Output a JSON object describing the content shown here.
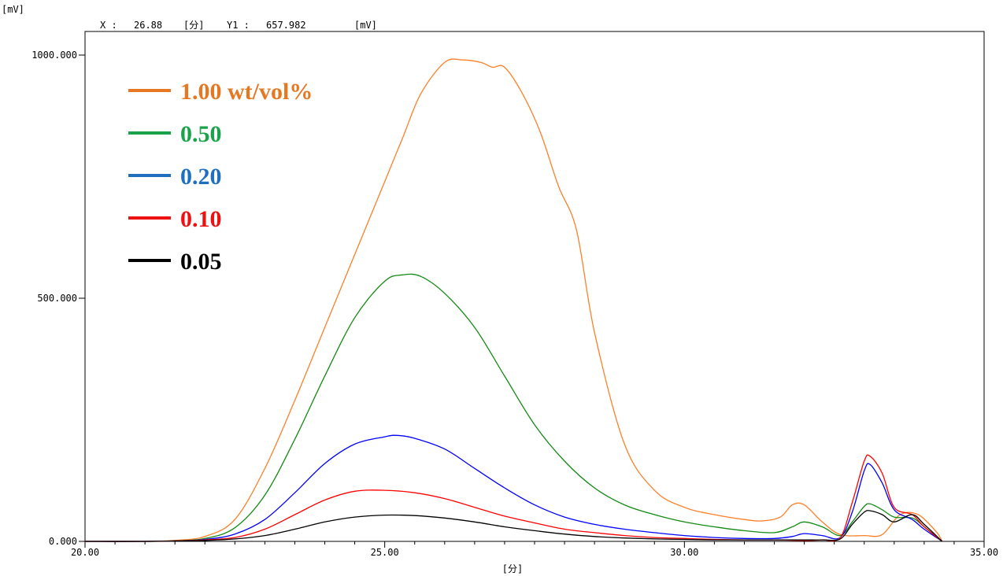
{
  "header": {
    "y_unit": "[mV]",
    "x_readout_label": "X :",
    "x_readout_value": "26.88",
    "x_readout_unit": "[分]",
    "y1_readout_label": "Y1 :",
    "y1_readout_value": "657.982",
    "y1_readout_unit": "[mV]"
  },
  "chart_data": {
    "type": "line",
    "title": "",
    "xlabel": "[分]",
    "ylabel": "[mV]",
    "xlim": [
      20,
      35
    ],
    "ylim": [
      0,
      1000
    ],
    "x_ticks": [
      {
        "value": 20,
        "label": "20.00"
      },
      {
        "value": 25,
        "label": "25.00"
      },
      {
        "value": 30,
        "label": "30.00"
      },
      {
        "value": 35,
        "label": "35.00"
      }
    ],
    "y_ticks": [
      {
        "value": 0,
        "label": "0.000"
      },
      {
        "value": 500,
        "label": "500.000"
      },
      {
        "value": 1000,
        "label": "1000.000"
      }
    ],
    "grid": false,
    "legend_position": "top-left",
    "series": [
      {
        "name": "1.00 wt/vol%",
        "color": "#ff7f27",
        "legend_color": "#e87722",
        "x": [
          20,
          21,
          21.5,
          22,
          22.5,
          23,
          23.5,
          24,
          24.5,
          25,
          25.3,
          25.6,
          26,
          26.3,
          26.6,
          26.8,
          27,
          27.3,
          27.6,
          27.9,
          28.2,
          28.5,
          29,
          29.5,
          30,
          30.5,
          31,
          31.3,
          31.6,
          31.8,
          32,
          32.3,
          32.6,
          33,
          33.3,
          33.6,
          33.9,
          34.2,
          34.3
        ],
        "values": [
          0,
          0,
          2,
          10,
          45,
          150,
          290,
          440,
          590,
          740,
          830,
          920,
          985,
          990,
          985,
          975,
          975,
          920,
          840,
          730,
          640,
          430,
          200,
          105,
          70,
          55,
          45,
          42,
          50,
          75,
          75,
          40,
          14,
          12,
          14,
          55,
          55,
          20,
          0
        ]
      },
      {
        "name": "0.50",
        "color": "#138a13",
        "legend_color": "#1aa34a",
        "x": [
          20,
          21,
          21.5,
          22,
          22.5,
          23,
          23.5,
          24,
          24.5,
          25,
          25.3,
          25.6,
          26,
          26.5,
          27,
          27.5,
          28,
          28.5,
          29,
          29.5,
          30,
          30.5,
          31,
          31.5,
          31.8,
          32,
          32.3,
          32.6,
          32.8,
          33,
          33.1,
          33.3,
          33.5,
          33.8,
          34,
          34.3
        ],
        "values": [
          0,
          0,
          1,
          6,
          28,
          95,
          210,
          340,
          460,
          535,
          548,
          545,
          510,
          440,
          340,
          240,
          165,
          110,
          75,
          55,
          40,
          30,
          22,
          18,
          30,
          40,
          30,
          12,
          40,
          72,
          77,
          65,
          50,
          48,
          30,
          0
        ]
      },
      {
        "name": "0.20",
        "color": "#0000ff",
        "legend_color": "#1f6fc0",
        "x": [
          20,
          21,
          21.5,
          22,
          22.5,
          23,
          23.5,
          24,
          24.5,
          25,
          25.2,
          25.5,
          26,
          26.5,
          27,
          27.5,
          28,
          28.5,
          29,
          29.5,
          30,
          30.5,
          31,
          31.5,
          31.8,
          32,
          32.3,
          32.6,
          32.8,
          33,
          33.1,
          33.3,
          33.5,
          33.8,
          34,
          34.3
        ],
        "values": [
          0,
          0,
          1,
          4,
          15,
          45,
          100,
          160,
          200,
          215,
          218,
          212,
          190,
          150,
          110,
          75,
          50,
          35,
          25,
          18,
          12,
          8,
          6,
          6,
          10,
          16,
          12,
          8,
          60,
          145,
          158,
          120,
          65,
          45,
          25,
          0
        ]
      },
      {
        "name": "0.10",
        "color": "#ff0000",
        "legend_color": "#ee1111",
        "x": [
          20,
          21,
          21.5,
          22,
          22.5,
          23,
          23.5,
          24,
          24.5,
          25,
          25.5,
          26,
          26.5,
          27,
          27.5,
          28,
          28.5,
          29,
          29.5,
          30,
          30.5,
          31,
          31.5,
          32,
          32.3,
          32.6,
          32.8,
          33,
          33.1,
          33.3,
          33.5,
          33.8,
          34,
          34.3
        ],
        "values": [
          0,
          0,
          1,
          3,
          8,
          25,
          55,
          85,
          103,
          105,
          100,
          88,
          70,
          52,
          38,
          25,
          18,
          12,
          8,
          6,
          4,
          3,
          3,
          2,
          3,
          8,
          80,
          165,
          175,
          140,
          70,
          55,
          30,
          0
        ]
      },
      {
        "name": "0.05",
        "color": "#000000",
        "legend_color": "#000000",
        "x": [
          20,
          21,
          21.5,
          22,
          22.5,
          23,
          23.5,
          24,
          24.5,
          25,
          25.5,
          26,
          26.5,
          27,
          27.5,
          28,
          28.5,
          29,
          29.5,
          30,
          30.5,
          31,
          31.5,
          32,
          32.3,
          32.6,
          32.8,
          33,
          33.1,
          33.3,
          33.5,
          33.8,
          34,
          34.3
        ],
        "values": [
          0,
          0,
          1,
          2,
          5,
          12,
          25,
          40,
          50,
          54,
          53,
          48,
          40,
          30,
          22,
          15,
          10,
          7,
          5,
          4,
          3,
          3,
          3,
          3,
          3,
          5,
          35,
          60,
          63,
          55,
          40,
          55,
          35,
          0
        ]
      }
    ]
  }
}
